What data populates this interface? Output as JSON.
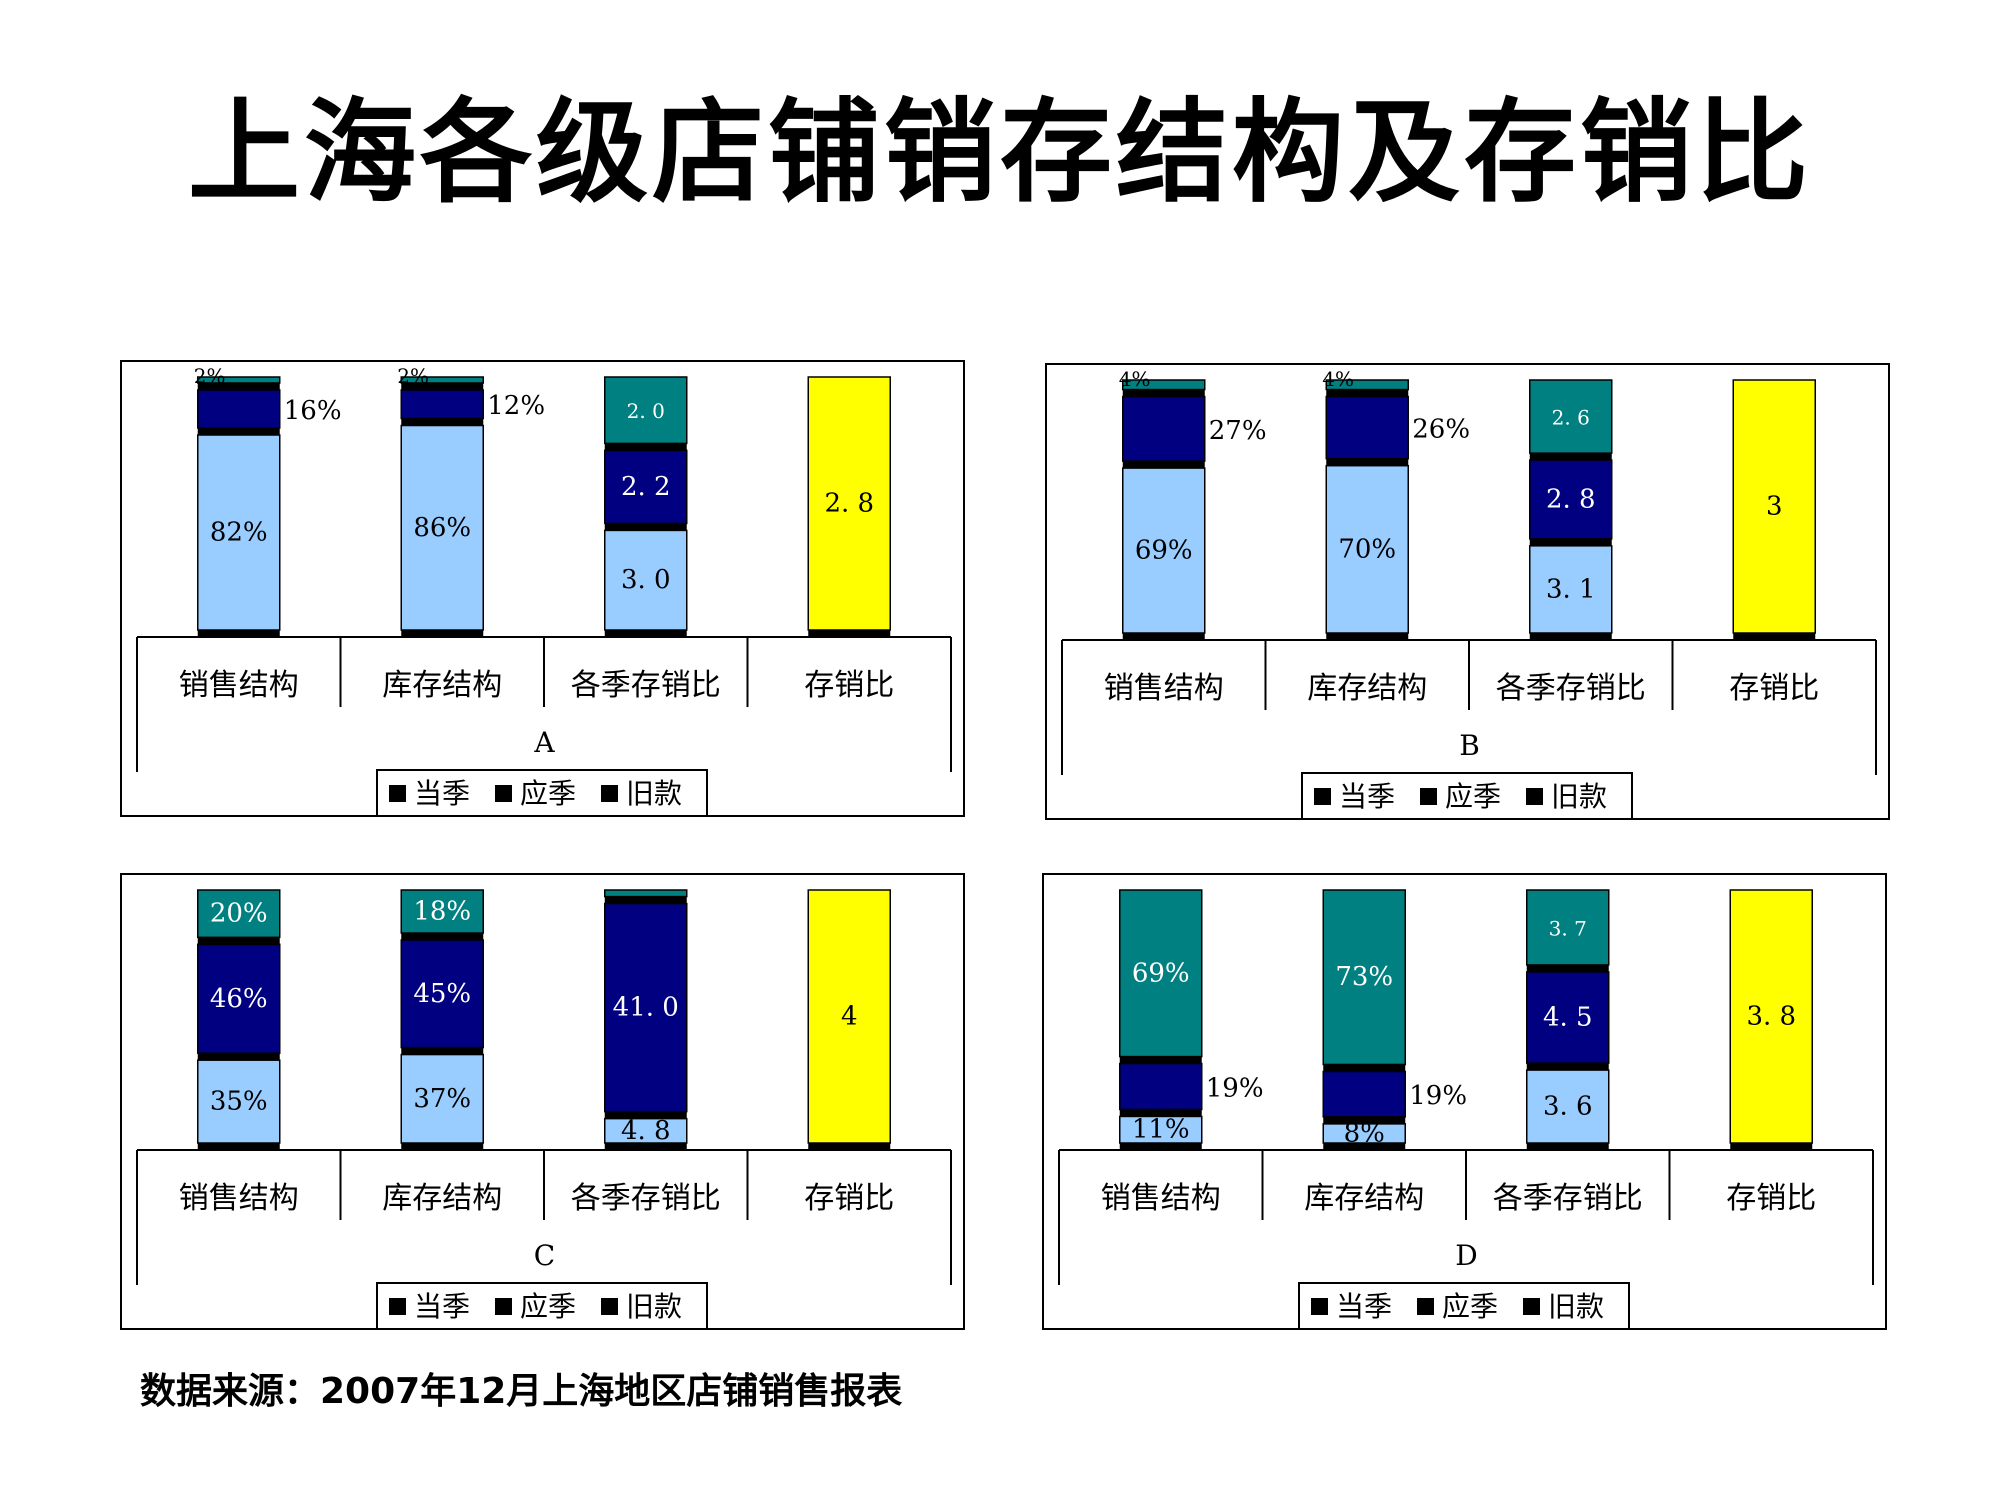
{
  "title": "上海各级店铺销存结构及存销比",
  "source_note": "数据来源：2007年12月上海地区店铺销售报表",
  "colors": {
    "当季": "#99ccff",
    "应季": "#000080",
    "旧款": "#008080",
    "存销比": "#ffff00",
    "separator": "#000000"
  },
  "chart_data": [
    {
      "type": "bar",
      "stacked": true,
      "xlabel": "A",
      "categories": [
        "销售结构",
        "库存结构",
        "各季存销比",
        "存销比"
      ],
      "legend": [
        "当季",
        "应季",
        "旧款"
      ],
      "legend_position": "bottom",
      "bars": [
        {
          "category": "销售结构",
          "segments": [
            {
              "series": "当季",
              "value": 82,
              "label": "82%"
            },
            {
              "series": "应季",
              "value": 16,
              "label": "16%"
            },
            {
              "series": "旧款",
              "value": 2,
              "label": "2%"
            }
          ]
        },
        {
          "category": "库存结构",
          "segments": [
            {
              "series": "当季",
              "value": 86,
              "label": "86%"
            },
            {
              "series": "应季",
              "value": 12,
              "label": "12%"
            },
            {
              "series": "旧款",
              "value": 2,
              "label": "2%"
            }
          ]
        },
        {
          "category": "各季存销比",
          "segments": [
            {
              "series": "当季",
              "value": 3.0,
              "label": "3. 0"
            },
            {
              "series": "应季",
              "value": 2.2,
              "label": "2. 2"
            },
            {
              "series": "旧款",
              "value": 2.0,
              "label": "2. 0"
            }
          ]
        },
        {
          "category": "存销比",
          "segments": [
            {
              "series": "存销比",
              "value": 2.8,
              "label": "2. 8"
            }
          ]
        }
      ]
    },
    {
      "type": "bar",
      "stacked": true,
      "xlabel": "B",
      "categories": [
        "销售结构",
        "库存结构",
        "各季存销比",
        "存销比"
      ],
      "legend": [
        "当季",
        "应季",
        "旧款"
      ],
      "legend_position": "bottom",
      "bars": [
        {
          "category": "销售结构",
          "segments": [
            {
              "series": "当季",
              "value": 69,
              "label": "69%"
            },
            {
              "series": "应季",
              "value": 27,
              "label": "27%"
            },
            {
              "series": "旧款",
              "value": 4,
              "label": "4%"
            }
          ]
        },
        {
          "category": "库存结构",
          "segments": [
            {
              "series": "当季",
              "value": 70,
              "label": "70%"
            },
            {
              "series": "应季",
              "value": 26,
              "label": "26%"
            },
            {
              "series": "旧款",
              "value": 4,
              "label": "4%"
            }
          ]
        },
        {
          "category": "各季存销比",
          "segments": [
            {
              "series": "当季",
              "value": 3.1,
              "label": "3. 1"
            },
            {
              "series": "应季",
              "value": 2.8,
              "label": "2. 8"
            },
            {
              "series": "旧款",
              "value": 2.6,
              "label": "2. 6"
            }
          ]
        },
        {
          "category": "存销比",
          "segments": [
            {
              "series": "存销比",
              "value": 3,
              "label": "3"
            }
          ]
        }
      ]
    },
    {
      "type": "bar",
      "stacked": true,
      "xlabel": "C",
      "categories": [
        "销售结构",
        "库存结构",
        "各季存销比",
        "存销比"
      ],
      "legend": [
        "当季",
        "应季",
        "旧款"
      ],
      "legend_position": "bottom",
      "bars": [
        {
          "category": "销售结构",
          "segments": [
            {
              "series": "当季",
              "value": 35,
              "label": "35%"
            },
            {
              "series": "应季",
              "value": 46,
              "label": "46%"
            },
            {
              "series": "旧款",
              "value": 20,
              "label": "20%"
            }
          ]
        },
        {
          "category": "库存结构",
          "segments": [
            {
              "series": "当季",
              "value": 37,
              "label": "37%"
            },
            {
              "series": "应季",
              "value": 45,
              "label": "45%"
            },
            {
              "series": "旧款",
              "value": 18,
              "label": "18%"
            }
          ]
        },
        {
          "category": "各季存销比",
          "segments": [
            {
              "series": "当季",
              "value": 4.8,
              "label": "4. 8"
            },
            {
              "series": "应季",
              "value": 41.0,
              "label": "41. 0"
            },
            {
              "series": "旧款",
              "value": 1.3,
              "label": ""
            }
          ]
        },
        {
          "category": "存销比",
          "segments": [
            {
              "series": "存销比",
              "value": 4,
              "label": "4"
            }
          ]
        }
      ]
    },
    {
      "type": "bar",
      "stacked": true,
      "xlabel": "D",
      "categories": [
        "销售结构",
        "库存结构",
        "各季存销比",
        "存销比"
      ],
      "legend": [
        "当季",
        "应季",
        "旧款"
      ],
      "legend_position": "bottom",
      "bars": [
        {
          "category": "销售结构",
          "segments": [
            {
              "series": "当季",
              "value": 11,
              "label": "11%"
            },
            {
              "series": "应季",
              "value": 19,
              "label": "19%"
            },
            {
              "series": "旧款",
              "value": 69,
              "label": "69%"
            }
          ]
        },
        {
          "category": "库存结构",
          "segments": [
            {
              "series": "当季",
              "value": 8,
              "label": "8%"
            },
            {
              "series": "应季",
              "value": 19,
              "label": "19%"
            },
            {
              "series": "旧款",
              "value": 73,
              "label": "73%"
            }
          ]
        },
        {
          "category": "各季存销比",
          "segments": [
            {
              "series": "当季",
              "value": 3.6,
              "label": "3. 6"
            },
            {
              "series": "应季",
              "value": 4.5,
              "label": "4. 5"
            },
            {
              "series": "旧款",
              "value": 3.7,
              "label": "3. 7"
            }
          ]
        },
        {
          "category": "存销比",
          "segments": [
            {
              "series": "存销比",
              "value": 3.8,
              "label": "3. 8"
            }
          ]
        }
      ]
    }
  ]
}
